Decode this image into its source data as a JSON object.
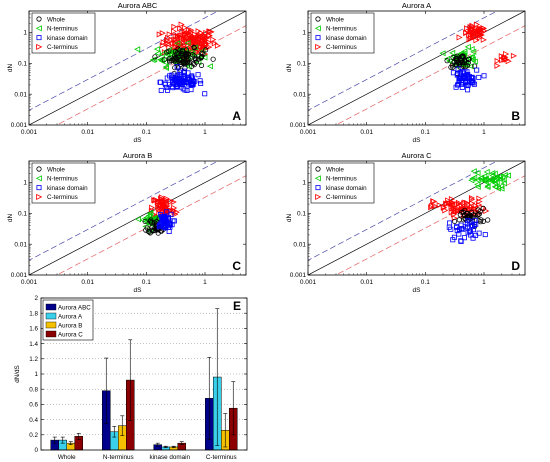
{
  "colors": {
    "whole": "#000000",
    "n_terminus": "#00cc00",
    "kinase": "#0000ff",
    "c_terminus": "#ff0000",
    "upper_line": "#4a4aa8",
    "lower_line": "#e06060",
    "bar_abc": "#00008b",
    "bar_a": "#3ad0ec",
    "bar_b": "#f5c000",
    "bar_c": "#8b0000"
  },
  "chart_data": [
    {
      "type": "scatter",
      "title": "Aurora ABC",
      "panel_label": "A",
      "xlabel": "dS",
      "ylabel": "dN",
      "scale": "log",
      "xlim": [
        0.001,
        5
      ],
      "ylim": [
        0.001,
        5
      ],
      "x_ticks": [
        "0.001",
        "0.01",
        "0.1",
        "1"
      ],
      "y_ticks": [
        "0.001",
        "0.01",
        "0.1",
        "1"
      ],
      "legend": [
        "Whole",
        "N-terminus",
        "kinase domain",
        "C-terminus"
      ],
      "legend_position": "top-left",
      "reference_lines": [
        "dN=dS",
        "dN=3dS",
        "dN=dS/3"
      ],
      "clusters": [
        {
          "series": "c_terminus",
          "cx": 0.55,
          "cy": 0.5,
          "sx": 0.45,
          "sy": 0.45,
          "n": 150
        },
        {
          "series": "n_terminus",
          "cx": 0.35,
          "cy": 0.18,
          "sx": 0.4,
          "sy": 0.35,
          "n": 70
        },
        {
          "series": "whole",
          "cx": 0.45,
          "cy": 0.15,
          "sx": 0.35,
          "sy": 0.3,
          "n": 80
        },
        {
          "series": "kinase",
          "cx": 0.4,
          "cy": 0.025,
          "sx": 0.35,
          "sy": 0.3,
          "n": 90
        }
      ]
    },
    {
      "type": "scatter",
      "title": "Aurora A",
      "panel_label": "B",
      "xlabel": "dS",
      "ylabel": "dN",
      "scale": "log",
      "xlim": [
        0.001,
        5
      ],
      "ylim": [
        0.001,
        5
      ],
      "x_ticks": [
        "0.001",
        "0.01",
        "0.1",
        "1"
      ],
      "y_ticks": [
        "0.001",
        "0.01",
        "0.1",
        "1"
      ],
      "legend": [
        "Whole",
        "N-terminus",
        "kinase domain",
        "C-terminus"
      ],
      "legend_position": "top-left",
      "reference_lines": [
        "dN=dS",
        "dN=3dS",
        "dN=dS/3"
      ],
      "clusters": [
        {
          "series": "c_terminus",
          "cx": 0.7,
          "cy": 0.9,
          "sx": 0.2,
          "sy": 0.25,
          "n": 50
        },
        {
          "series": "c_terminus",
          "cx": 2.3,
          "cy": 0.15,
          "sx": 0.12,
          "sy": 0.2,
          "n": 12
        },
        {
          "series": "n_terminus",
          "cx": 0.45,
          "cy": 0.15,
          "sx": 0.25,
          "sy": 0.3,
          "n": 40
        },
        {
          "series": "whole",
          "cx": 0.4,
          "cy": 0.12,
          "sx": 0.2,
          "sy": 0.2,
          "n": 40
        },
        {
          "series": "kinase",
          "cx": 0.45,
          "cy": 0.03,
          "sx": 0.22,
          "sy": 0.3,
          "n": 55
        }
      ]
    },
    {
      "type": "scatter",
      "title": "Aurora B",
      "panel_label": "C",
      "xlabel": "dS",
      "ylabel": "dN",
      "scale": "log",
      "xlim": [
        0.001,
        5
      ],
      "ylim": [
        0.001,
        5
      ],
      "x_ticks": [
        "0.001",
        "0.01",
        "0.1",
        "1"
      ],
      "y_ticks": [
        "0.001",
        "0.01",
        "0.1",
        "1"
      ],
      "legend": [
        "Whole",
        "N-terminus",
        "kinase domain",
        "C-terminus"
      ],
      "legend_position": "top-left",
      "reference_lines": [
        "dN=dS",
        "dN=3dS",
        "dN=dS/3"
      ],
      "clusters": [
        {
          "series": "c_terminus",
          "cx": 0.2,
          "cy": 0.15,
          "sx": 0.2,
          "sy": 0.45,
          "n": 70
        },
        {
          "series": "n_terminus",
          "cx": 0.12,
          "cy": 0.06,
          "sx": 0.15,
          "sy": 0.25,
          "n": 30
        },
        {
          "series": "whole",
          "cx": 0.15,
          "cy": 0.04,
          "sx": 0.15,
          "sy": 0.25,
          "n": 40
        },
        {
          "series": "kinase",
          "cx": 0.2,
          "cy": 0.05,
          "sx": 0.15,
          "sy": 0.3,
          "n": 45
        }
      ]
    },
    {
      "type": "scatter",
      "title": "Aurora C",
      "panel_label": "D",
      "xlabel": "dS",
      "ylabel": "dN",
      "scale": "log",
      "xlim": [
        0.001,
        5
      ],
      "ylim": [
        0.001,
        5
      ],
      "x_ticks": [
        "0.001",
        "0.01",
        "0.1",
        "1"
      ],
      "y_ticks": [
        "0.001",
        "0.01",
        "0.1",
        "1"
      ],
      "legend": [
        "Whole",
        "N-terminus",
        "kinase domain",
        "C-terminus"
      ],
      "legend_position": "top-left",
      "reference_lines": [
        "dN=dS",
        "dN=3dS",
        "dN=dS/3"
      ],
      "clusters": [
        {
          "series": "n_terminus",
          "cx": 1.2,
          "cy": 1.2,
          "sx": 0.3,
          "sy": 0.3,
          "n": 45
        },
        {
          "series": "c_terminus",
          "cx": 0.4,
          "cy": 0.15,
          "sx": 0.45,
          "sy": 0.3,
          "n": 70
        },
        {
          "series": "whole",
          "cx": 0.6,
          "cy": 0.08,
          "sx": 0.25,
          "sy": 0.25,
          "n": 40
        },
        {
          "series": "kinase",
          "cx": 0.5,
          "cy": 0.03,
          "sx": 0.3,
          "sy": 0.35,
          "n": 35
        }
      ]
    },
    {
      "type": "bar",
      "panel_label": "E",
      "ylabel": "dN/dS",
      "ylim": [
        0,
        2
      ],
      "y_ticks": [
        "0",
        "0.2",
        "0.4",
        "0.6",
        "0.8",
        "1",
        "1.2",
        "1.4",
        "1.6",
        "1.8",
        "2"
      ],
      "grid": true,
      "legend_position": "top-left",
      "categories": [
        "Whole",
        "N-terminus",
        "kinase domain",
        "C-terminus"
      ],
      "series": [
        {
          "name": "Aurora ABC",
          "values": [
            0.13,
            0.78,
            0.07,
            0.68
          ],
          "errors": [
            0.04,
            0.43,
            0.02,
            0.54
          ]
        },
        {
          "name": "Aurora A",
          "values": [
            0.13,
            0.24,
            0.04,
            0.96
          ],
          "errors": [
            0.04,
            0.07,
            0.01,
            0.9
          ]
        },
        {
          "name": "Aurora B",
          "values": [
            0.09,
            0.32,
            0.04,
            0.26
          ],
          "errors": [
            0.02,
            0.13,
            0.01,
            0.22
          ]
        },
        {
          "name": "Aurora C",
          "values": [
            0.18,
            0.92,
            0.09,
            0.55
          ],
          "errors": [
            0.04,
            0.53,
            0.02,
            0.35
          ]
        }
      ]
    }
  ]
}
